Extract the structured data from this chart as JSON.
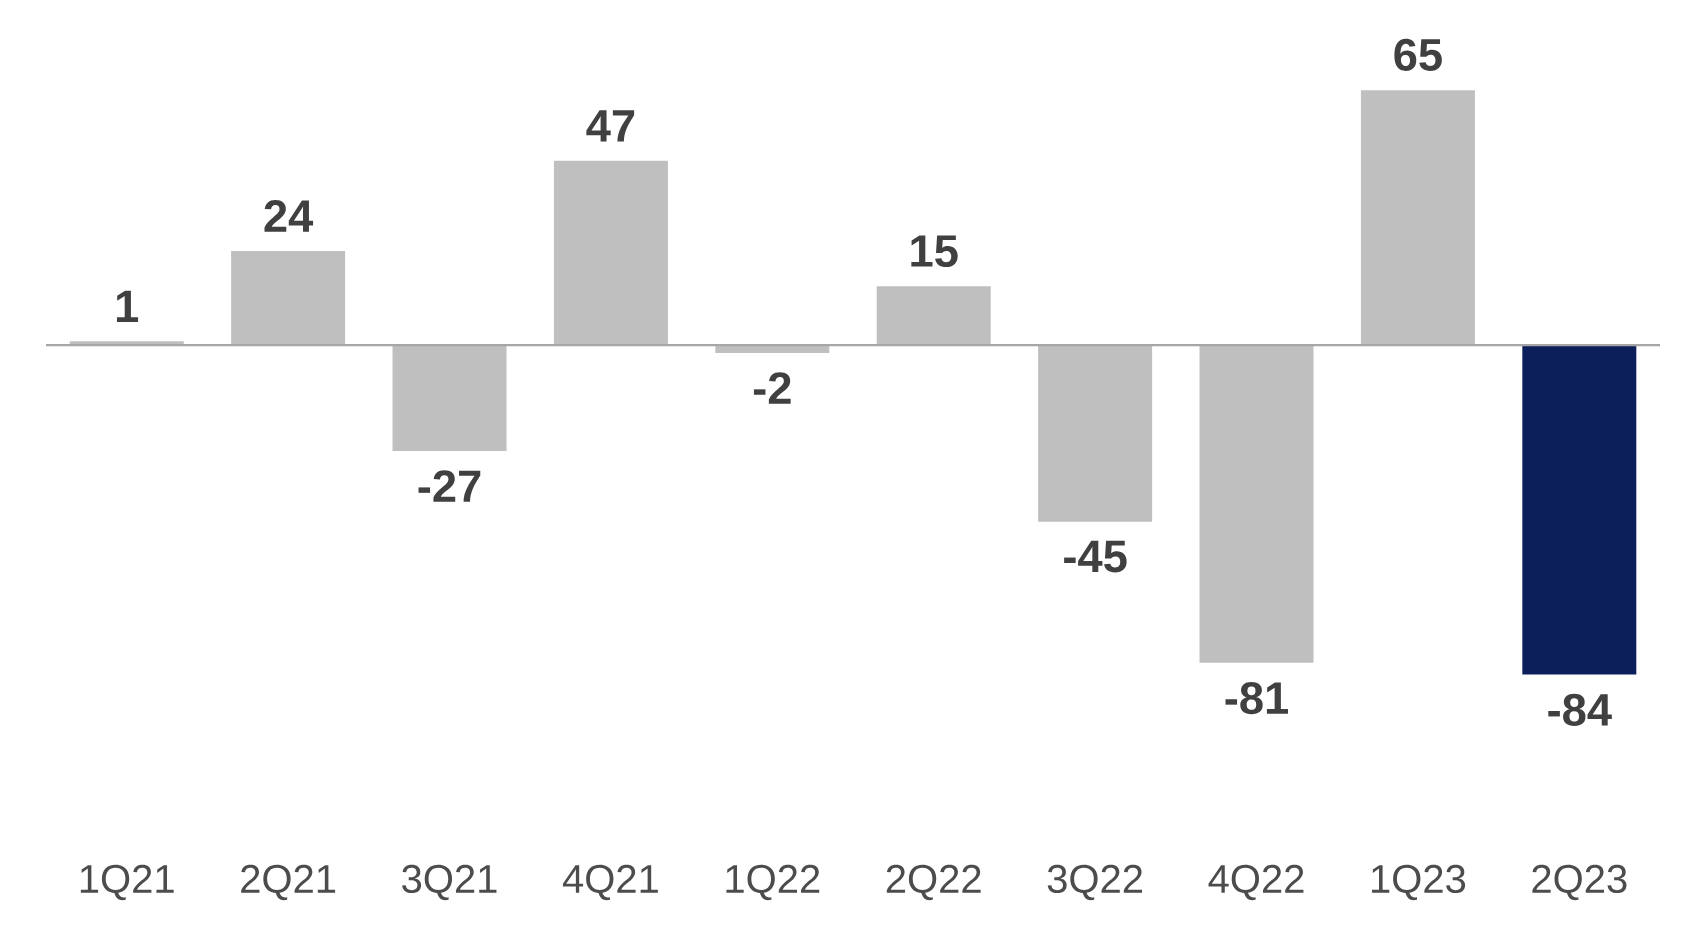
{
  "chart_data": {
    "type": "bar",
    "categories": [
      "1Q21",
      "2Q21",
      "3Q21",
      "4Q21",
      "1Q22",
      "2Q22",
      "3Q22",
      "4Q22",
      "1Q23",
      "2Q23"
    ],
    "values": [
      1,
      24,
      -27,
      47,
      -2,
      15,
      -45,
      -81,
      65,
      -84
    ],
    "colors": [
      "#bfbfbf",
      "#bfbfbf",
      "#bfbfbf",
      "#bfbfbf",
      "#bfbfbf",
      "#bfbfbf",
      "#bfbfbf",
      "#bfbfbf",
      "#bfbfbf",
      "#0c1f5b"
    ],
    "data_labels": true
  }
}
